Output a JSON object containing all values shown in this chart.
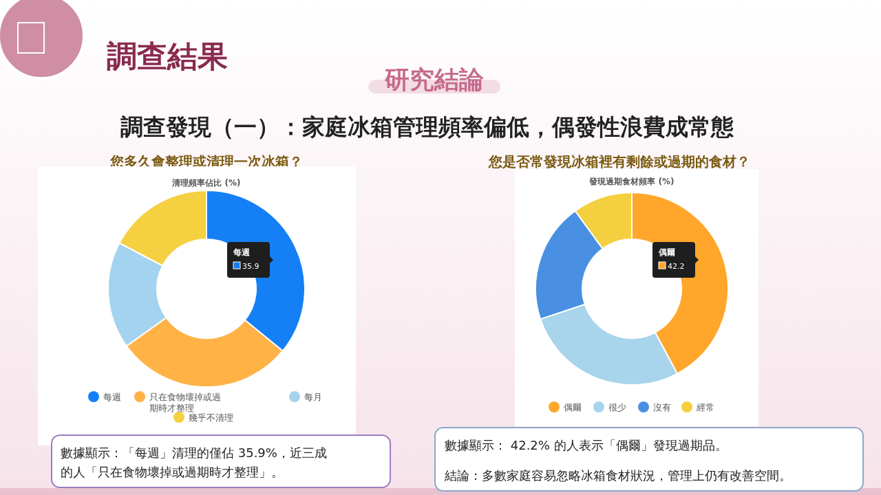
{
  "chart_data": [
    {
      "type": "other",
      "title": "調查結果",
      "subtitle": "研究結論",
      "annotations": [
        "調查發現（一）：家庭冰箱管理頻率偏低，偶發性浪費成常態"
      ]
    },
    {
      "type": "donut",
      "title": "清理頻率佔比 (%)",
      "categories": [
        "每週",
        "只在食物壞掉或過期時才整理",
        "每月",
        "幾乎不清理"
      ],
      "values": [
        35.9,
        29.2,
        17.6,
        17.3
      ],
      "colors": [
        "#1580f5",
        "#ffb347",
        "#a3d3ee",
        "#f5d040"
      ],
      "value_labels": [
        "35.9",
        null,
        null,
        null
      ],
      "legend": "bottom",
      "annotations": [
        "您多久會整理或清理一次冰箱？",
        "數據顯示：「每週」清理的僅佔 35.9%，近三成的人「只在食物壞掉或過期時才整理」。"
      ]
    },
    {
      "type": "donut",
      "title": "發現過期食材頻率 (%)",
      "categories": [
        "偶爾",
        "很少",
        "沒有",
        "經常"
      ],
      "values": [
        42.2,
        27.7,
        20.1,
        10.0
      ],
      "colors": [
        "#ffa62b",
        "#a8d4ec",
        "#4a90e2",
        "#f4cf3f"
      ],
      "value_labels": [
        "42.2",
        null,
        null,
        null
      ],
      "legend": "bottom",
      "annotations": [
        "您是否常發現冰箱裡有剩餘或過期的食材？",
        "數據顯示： 42.2% 的人表示「偶爾」發現過期品。",
        "結論：多數家庭容易忽略冰箱食材狀況，管理上仍有改善空間。"
      ]
    }
  ]
}
